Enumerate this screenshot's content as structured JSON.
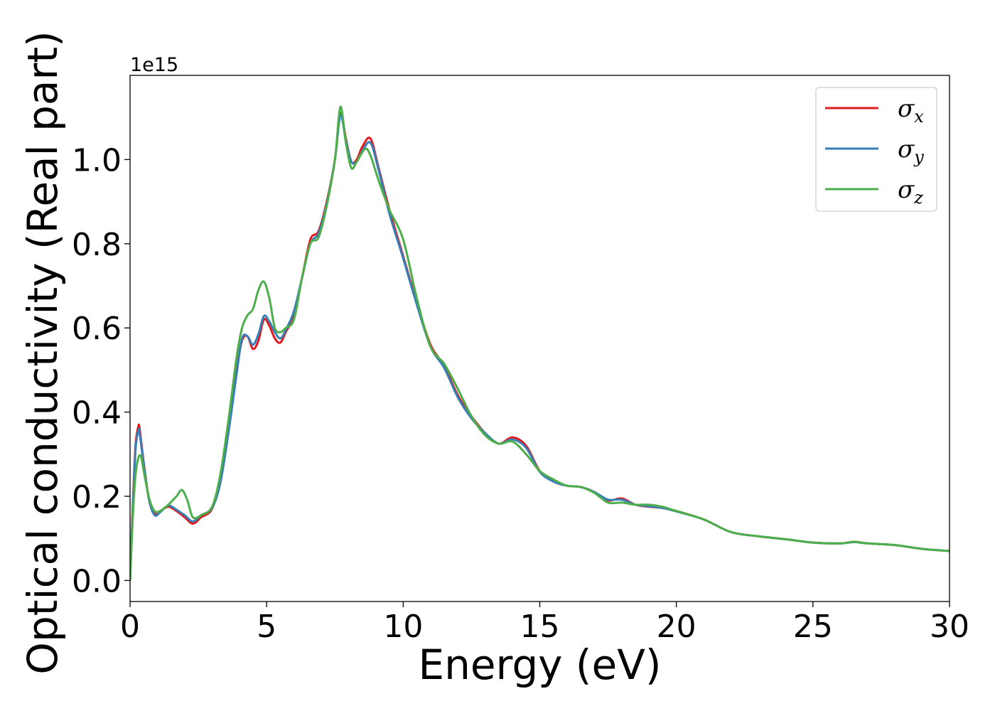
{
  "chart_data": {
    "type": "line",
    "title": "",
    "xlabel": "Energy (eV)",
    "ylabel": "Optical conductivity (Real part)",
    "y_offset_label": "1e15",
    "xlim": [
      0,
      30
    ],
    "ylim": [
      -0.05,
      1.2
    ],
    "xticks": [
      0,
      5,
      10,
      15,
      20,
      25,
      30
    ],
    "xtick_labels": [
      "0",
      "5",
      "10",
      "15",
      "20",
      "25",
      "30"
    ],
    "yticks": [
      0.0,
      0.2,
      0.4,
      0.6,
      0.8,
      1.0
    ],
    "ytick_labels": [
      "0.0",
      "0.2",
      "0.4",
      "0.6",
      "0.8",
      "1.0"
    ],
    "grid": false,
    "legend_position": "top-right",
    "series": [
      {
        "name": "σx",
        "legend_symbol": "σ",
        "legend_subscript": "x",
        "color": "#e41a1c",
        "x": [
          0,
          0.1,
          0.2,
          0.3,
          0.35,
          0.5,
          0.7,
          0.9,
          1.1,
          1.4,
          1.7,
          2.0,
          2.3,
          2.6,
          3.0,
          3.3,
          3.6,
          3.9,
          4.1,
          4.3,
          4.5,
          4.7,
          4.9,
          5.1,
          5.3,
          5.5,
          5.7,
          6.0,
          6.3,
          6.6,
          6.9,
          7.2,
          7.5,
          7.7,
          7.9,
          8.1,
          8.3,
          8.5,
          8.8,
          9.1,
          9.5,
          10.0,
          10.5,
          11.0,
          11.5,
          12.0,
          12.5,
          13.0,
          13.5,
          14.0,
          14.5,
          15.0,
          15.5,
          16.0,
          16.5,
          17.0,
          17.5,
          18.0,
          18.5,
          19.0,
          19.5,
          20.0,
          21.0,
          22.0,
          23.0,
          24.0,
          25.0,
          26.0,
          26.5,
          27.0,
          28.0,
          29.0,
          30.0
        ],
        "y": [
          0.0,
          0.18,
          0.32,
          0.365,
          0.36,
          0.28,
          0.19,
          0.16,
          0.165,
          0.175,
          0.165,
          0.15,
          0.135,
          0.15,
          0.17,
          0.24,
          0.36,
          0.5,
          0.57,
          0.58,
          0.55,
          0.57,
          0.62,
          0.605,
          0.575,
          0.565,
          0.59,
          0.63,
          0.72,
          0.81,
          0.83,
          0.9,
          1.0,
          1.11,
          1.05,
          0.995,
          1.0,
          1.03,
          1.05,
          0.98,
          0.88,
          0.77,
          0.66,
          0.56,
          0.51,
          0.44,
          0.39,
          0.35,
          0.325,
          0.34,
          0.32,
          0.26,
          0.235,
          0.225,
          0.222,
          0.21,
          0.19,
          0.195,
          0.18,
          0.175,
          0.172,
          0.165,
          0.145,
          0.115,
          0.105,
          0.098,
          0.09,
          0.088,
          0.092,
          0.088,
          0.084,
          0.075,
          0.07
        ]
      },
      {
        "name": "σy",
        "legend_symbol": "σ",
        "legend_subscript": "y",
        "color": "#377eb8",
        "x": [
          0,
          0.1,
          0.2,
          0.3,
          0.35,
          0.5,
          0.7,
          0.9,
          1.1,
          1.4,
          1.7,
          2.0,
          2.3,
          2.6,
          3.0,
          3.3,
          3.6,
          3.9,
          4.1,
          4.3,
          4.5,
          4.7,
          4.9,
          5.1,
          5.3,
          5.5,
          5.7,
          6.0,
          6.3,
          6.6,
          6.9,
          7.2,
          7.5,
          7.7,
          7.9,
          8.1,
          8.3,
          8.5,
          8.8,
          9.1,
          9.5,
          10.0,
          10.5,
          11.0,
          11.5,
          12.0,
          12.5,
          13.0,
          13.5,
          14.0,
          14.5,
          15.0,
          15.5,
          16.0,
          16.5,
          17.0,
          17.5,
          18.0,
          18.5,
          19.0,
          19.5,
          20.0,
          21.0,
          22.0,
          23.0,
          24.0,
          25.0,
          26.0,
          26.5,
          27.0,
          28.0,
          29.0,
          30.0
        ],
        "y": [
          0.0,
          0.17,
          0.31,
          0.355,
          0.35,
          0.275,
          0.19,
          0.155,
          0.162,
          0.178,
          0.168,
          0.155,
          0.14,
          0.155,
          0.172,
          0.23,
          0.35,
          0.49,
          0.575,
          0.58,
          0.56,
          0.585,
          0.628,
          0.615,
          0.59,
          0.575,
          0.595,
          0.64,
          0.72,
          0.8,
          0.825,
          0.895,
          1.0,
          1.105,
          1.045,
          0.995,
          0.995,
          1.02,
          1.04,
          0.975,
          0.87,
          0.765,
          0.655,
          0.555,
          0.505,
          0.435,
          0.385,
          0.35,
          0.325,
          0.335,
          0.315,
          0.258,
          0.235,
          0.225,
          0.222,
          0.21,
          0.192,
          0.192,
          0.18,
          0.176,
          0.172,
          0.164,
          0.145,
          0.115,
          0.105,
          0.098,
          0.09,
          0.088,
          0.091,
          0.088,
          0.084,
          0.075,
          0.07
        ]
      },
      {
        "name": "σz",
        "legend_symbol": "σ",
        "legend_subscript": "z",
        "color": "#4daf4a",
        "x": [
          0,
          0.1,
          0.2,
          0.3,
          0.4,
          0.5,
          0.7,
          0.9,
          1.1,
          1.4,
          1.7,
          1.9,
          2.1,
          2.3,
          2.6,
          3.0,
          3.3,
          3.6,
          3.9,
          4.1,
          4.3,
          4.5,
          4.7,
          4.9,
          5.1,
          5.3,
          5.5,
          5.7,
          6.0,
          6.3,
          6.6,
          6.9,
          7.2,
          7.5,
          7.7,
          7.9,
          8.1,
          8.3,
          8.6,
          8.8,
          9.1,
          9.5,
          10.0,
          10.5,
          11.0,
          11.5,
          12.0,
          12.5,
          13.0,
          13.5,
          14.0,
          14.5,
          15.0,
          15.5,
          16.0,
          16.5,
          17.0,
          17.5,
          18.0,
          18.5,
          19.0,
          19.5,
          20.0,
          21.0,
          22.0,
          23.0,
          24.0,
          25.0,
          26.0,
          26.5,
          27.0,
          28.0,
          29.0,
          30.0
        ],
        "y": [
          0.0,
          0.15,
          0.25,
          0.29,
          0.295,
          0.26,
          0.195,
          0.165,
          0.165,
          0.18,
          0.2,
          0.215,
          0.19,
          0.15,
          0.155,
          0.175,
          0.25,
          0.38,
          0.53,
          0.6,
          0.63,
          0.645,
          0.69,
          0.71,
          0.67,
          0.6,
          0.59,
          0.6,
          0.62,
          0.72,
          0.8,
          0.815,
          0.89,
          1.0,
          1.125,
          1.04,
          0.98,
          0.995,
          1.025,
          1.01,
          0.95,
          0.88,
          0.81,
          0.67,
          0.555,
          0.515,
          0.455,
          0.39,
          0.345,
          0.325,
          0.33,
          0.3,
          0.26,
          0.24,
          0.225,
          0.222,
          0.208,
          0.185,
          0.185,
          0.18,
          0.18,
          0.175,
          0.165,
          0.145,
          0.115,
          0.105,
          0.098,
          0.09,
          0.088,
          0.092,
          0.088,
          0.084,
          0.075,
          0.07
        ]
      }
    ]
  }
}
